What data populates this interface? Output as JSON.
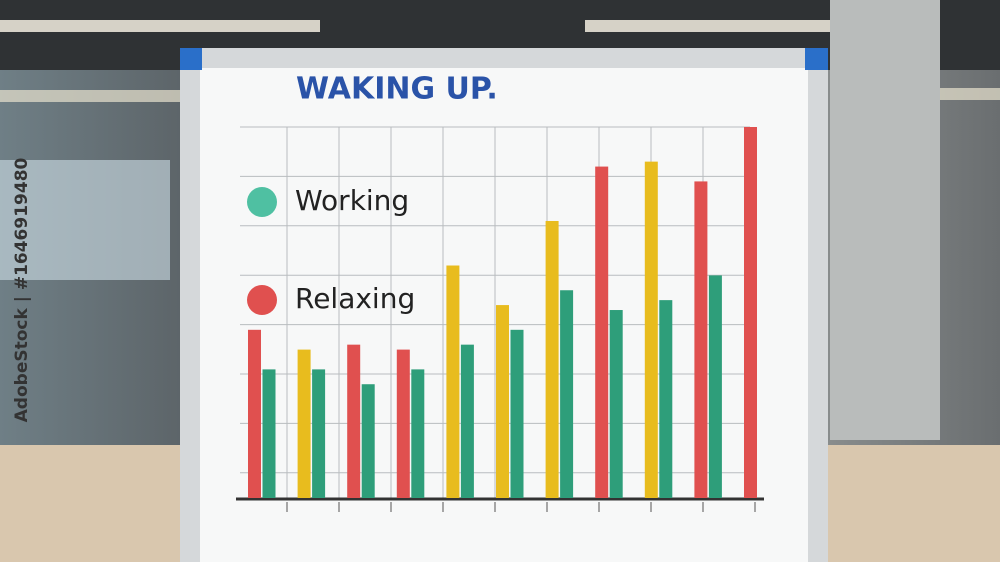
{
  "chart_data": {
    "type": "bar",
    "title": "WAKING UP.",
    "categories": [
      null,
      null,
      null,
      null,
      null,
      null,
      null,
      null,
      null,
      null,
      null
    ],
    "series": [
      {
        "name": "Working",
        "color": "#2e9e7a",
        "legend_color": "#4fc0a2",
        "values": [
          2.6,
          2.6,
          2.3,
          2.6,
          3.1,
          3.4,
          4.2,
          3.8,
          4.0,
          4.5,
          null
        ]
      },
      {
        "name": "Relaxing",
        "color": "#e0504f",
        "legend_color": "#e0504f",
        "colors": [
          "#e0504f",
          "#e8bc1e",
          "#e0504f",
          "#e0504f",
          "#e8bc1e",
          "#e8bc1e",
          "#e8bc1e",
          "#e0504f",
          "#e8bc1e",
          "#e0504f",
          "#e0504f"
        ],
        "values": [
          3.4,
          3.0,
          3.1,
          3.0,
          4.7,
          3.9,
          5.6,
          6.7,
          6.8,
          6.4,
          7.5
        ]
      }
    ],
    "ylim": [
      0,
      7.5
    ],
    "grid": true,
    "side_label": "AdobeStock | #1646919480"
  }
}
